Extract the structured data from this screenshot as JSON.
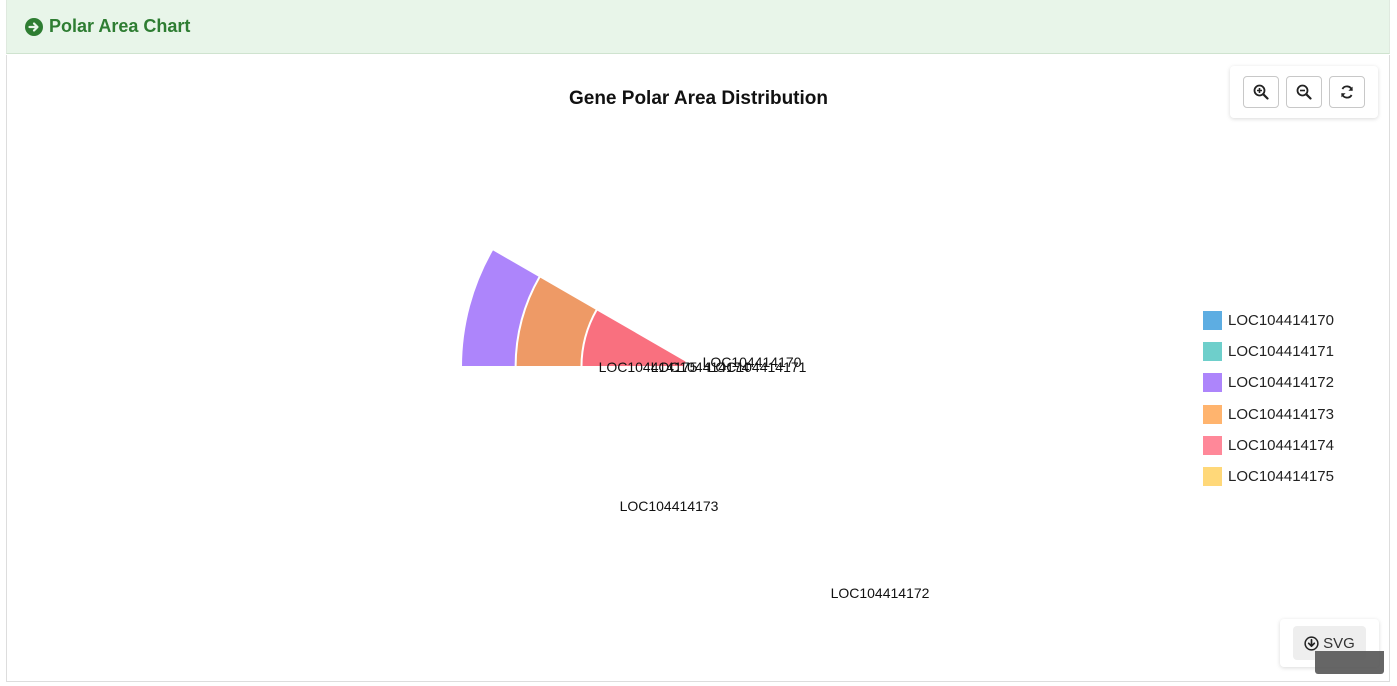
{
  "header": {
    "title": "Polar Area Chart",
    "icon": "arrow-circle-right-icon"
  },
  "toolbar": {
    "buttons": [
      {
        "icon": "zoom-in-icon"
      },
      {
        "icon": "zoom-out-icon"
      },
      {
        "icon": "refresh-icon"
      }
    ]
  },
  "export": {
    "label": "SVG",
    "icon": "download-circle-icon"
  },
  "chart_data": {
    "type": "polar-area",
    "title": "Gene Polar Area Distribution",
    "categories": [
      "LOC104414170",
      "LOC104414171",
      "LOC104414172",
      "LOC104414173",
      "LOC104414174",
      "LOC104414175"
    ],
    "values": [
      0.2,
      0.6,
      242,
      143,
      58,
      0.1
    ],
    "colors": [
      "#5dade2",
      "#6ecfcb",
      "#ad85fb",
      "#ee9a66",
      "#f9707f",
      "#fcd679"
    ],
    "legend_colors": [
      "#5dade2",
      "#6ecfcb",
      "#ad85fb",
      "#ffb46e",
      "#ff8899",
      "#ffd879"
    ],
    "legend_position": "right",
    "start_angle_deg": 0,
    "sweep_deg": 30,
    "direction": "counterclockwise-from-left"
  }
}
